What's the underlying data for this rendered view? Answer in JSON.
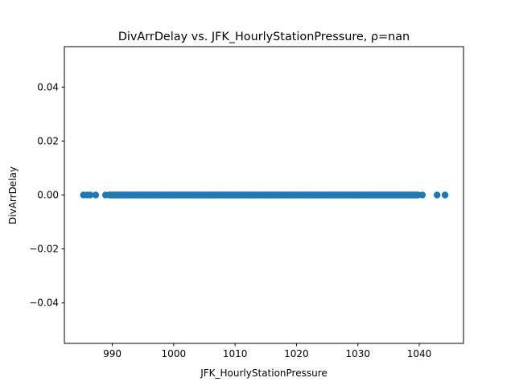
{
  "chart_data": {
    "type": "scatter",
    "title": "DivArrDelay vs. JFK_HourlyStationPressure, ρ=nan",
    "xlabel": "JFK_HourlyStationPressure",
    "ylabel": "DivArrDelay",
    "xlim": [
      982.2,
      1047.2
    ],
    "ylim": [
      -0.055,
      0.055
    ],
    "xticks": [
      990,
      1000,
      1010,
      1020,
      1030,
      1040
    ],
    "xtick_labels": [
      "990",
      "1000",
      "1010",
      "1020",
      "1030",
      "1040"
    ],
    "yticks": [
      0.04,
      0.02,
      0.0,
      -0.02,
      -0.04
    ],
    "ytick_labels": [
      "0.04",
      "0.02",
      "0.00",
      "−0.02",
      "−0.04"
    ],
    "grid": false,
    "colors": {
      "marker": "#1f77b4",
      "axes": "#000000",
      "background": "#ffffff"
    },
    "series": [
      {
        "x": [
          985.3,
          985.9,
          986.4,
          987.3,
          988.9,
          989.5,
          990.1,
          990.7,
          991.3,
          991.9,
          992.6,
          993.2,
          993.9,
          994.4,
          995.1,
          995.8,
          996.4,
          997.1,
          997.8,
          998.5,
          999.2,
          999.8,
          1000.5,
          1001.2,
          1001.9,
          1002.6,
          1003.3,
          1004.0,
          1004.8,
          1005.5,
          1006.3,
          1007.0,
          1007.8,
          1008.6,
          1009.4,
          1010.2,
          1011.0,
          1011.8,
          1012.6,
          1013.4,
          1014.2,
          1015.0,
          1015.8,
          1016.6,
          1017.4,
          1018.2,
          1019.0,
          1019.8,
          1020.6,
          1021.4,
          1022.2,
          1023.0,
          1023.8,
          1024.6,
          1025.4,
          1026.2,
          1027.0,
          1027.8,
          1028.6,
          1029.4,
          1030.2,
          1030.9,
          1031.6,
          1032.2,
          1032.9,
          1033.6,
          1034.3,
          1035.0,
          1035.7,
          1036.4,
          1037.1,
          1037.8,
          1038.5,
          1039.2,
          1039.8,
          1040.5,
          1042.9,
          1044.2
        ],
        "y": [
          0,
          0,
          0,
          0,
          0,
          0,
          0,
          0,
          0,
          0,
          0,
          0,
          0,
          0,
          0,
          0,
          0,
          0,
          0,
          0,
          0,
          0,
          0,
          0,
          0,
          0,
          0,
          0,
          0,
          0,
          0,
          0,
          0,
          0,
          0,
          0,
          0,
          0,
          0,
          0,
          0,
          0,
          0,
          0,
          0,
          0,
          0,
          0,
          0,
          0,
          0,
          0,
          0,
          0,
          0,
          0,
          0,
          0,
          0,
          0,
          0,
          0,
          0,
          0,
          0,
          0,
          0,
          0,
          0,
          0,
          0,
          0,
          0,
          0,
          0,
          0,
          0,
          0
        ]
      }
    ]
  }
}
